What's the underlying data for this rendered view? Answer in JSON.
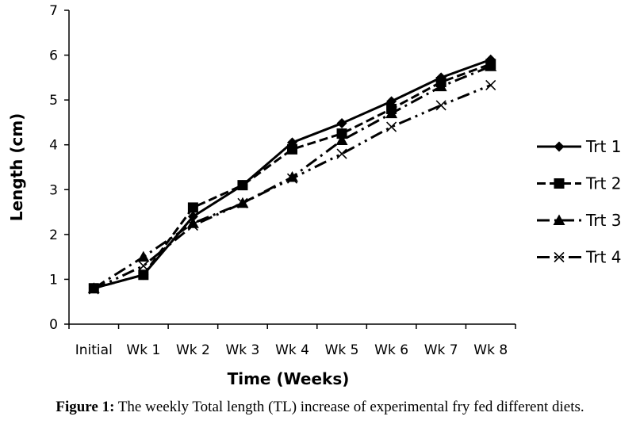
{
  "chart_data": {
    "type": "line",
    "xlabel": "Time (Weeks)",
    "ylabel": "Length (cm)",
    "categories": [
      "Initial",
      "Wk 1",
      "Wk 2",
      "Wk 3",
      "Wk 4",
      "Wk 5",
      "Wk 6",
      "Wk 7",
      "Wk 8"
    ],
    "ylim": [
      0,
      7
    ],
    "yticks": [
      0,
      1,
      2,
      3,
      4,
      5,
      6,
      7
    ],
    "grid": false,
    "legend_position": "right",
    "series": [
      {
        "name": "Trt 1",
        "values": [
          0.8,
          1.1,
          2.4,
          3.1,
          4.05,
          4.48,
          4.97,
          5.5,
          5.9
        ],
        "marker": "diamond",
        "dash": "solid"
      },
      {
        "name": "Trt 2",
        "values": [
          0.8,
          1.1,
          2.6,
          3.1,
          3.9,
          4.25,
          4.8,
          5.4,
          5.8
        ],
        "marker": "square",
        "dash": "dashed"
      },
      {
        "name": "Trt 3",
        "values": [
          0.8,
          1.5,
          2.25,
          2.7,
          3.28,
          4.1,
          4.7,
          5.3,
          5.75
        ],
        "marker": "triangle",
        "dash": "dash-dot"
      },
      {
        "name": "Trt 4",
        "values": [
          0.78,
          1.3,
          2.2,
          2.7,
          3.25,
          3.8,
          4.4,
          4.88,
          5.33
        ],
        "marker": "x",
        "dash": "dash-dot-dot"
      }
    ]
  },
  "caption": {
    "label": "Figure 1:",
    "text": " The weekly Total length (TL) increase of experimental fry fed different diets."
  }
}
